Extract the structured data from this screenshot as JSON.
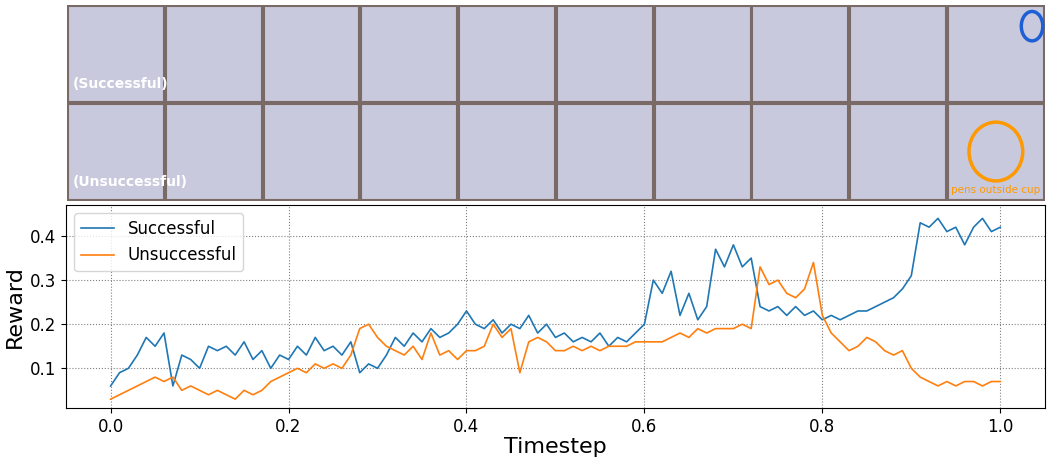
{
  "chart_data": {
    "type": "line",
    "x_label": "Timestep",
    "y_label": "Reward",
    "x": [
      0.0,
      0.01,
      0.02,
      0.03,
      0.04,
      0.05,
      0.06,
      0.07,
      0.08,
      0.09,
      0.1,
      0.11,
      0.12,
      0.13,
      0.14,
      0.15,
      0.16,
      0.17,
      0.18,
      0.19,
      0.2,
      0.21,
      0.22,
      0.23,
      0.24,
      0.25,
      0.26,
      0.27,
      0.28,
      0.29,
      0.3,
      0.31,
      0.32,
      0.33,
      0.34,
      0.35,
      0.36,
      0.37,
      0.38,
      0.39,
      0.4,
      0.41,
      0.42,
      0.43,
      0.44,
      0.45,
      0.46,
      0.47,
      0.48,
      0.49,
      0.5,
      0.51,
      0.52,
      0.53,
      0.54,
      0.55,
      0.56,
      0.57,
      0.58,
      0.59,
      0.6,
      0.61,
      0.62,
      0.63,
      0.64,
      0.65,
      0.66,
      0.67,
      0.68,
      0.69,
      0.7,
      0.71,
      0.72,
      0.73,
      0.74,
      0.75,
      0.76,
      0.77,
      0.78,
      0.79,
      0.8,
      0.81,
      0.82,
      0.83,
      0.84,
      0.85,
      0.86,
      0.87,
      0.88,
      0.89,
      0.9,
      0.91,
      0.92,
      0.93,
      0.94,
      0.95,
      0.96,
      0.97,
      0.98,
      0.99,
      1.0
    ],
    "series": [
      {
        "name": "Successful",
        "color": "#1f77b4",
        "values": [
          0.06,
          0.09,
          0.1,
          0.13,
          0.17,
          0.15,
          0.18,
          0.06,
          0.13,
          0.12,
          0.1,
          0.15,
          0.14,
          0.15,
          0.13,
          0.16,
          0.12,
          0.14,
          0.1,
          0.13,
          0.12,
          0.15,
          0.13,
          0.17,
          0.14,
          0.15,
          0.13,
          0.16,
          0.09,
          0.11,
          0.1,
          0.13,
          0.17,
          0.15,
          0.18,
          0.16,
          0.19,
          0.17,
          0.18,
          0.2,
          0.23,
          0.2,
          0.19,
          0.21,
          0.18,
          0.2,
          0.19,
          0.22,
          0.18,
          0.2,
          0.17,
          0.18,
          0.16,
          0.17,
          0.16,
          0.18,
          0.15,
          0.17,
          0.16,
          0.18,
          0.2,
          0.3,
          0.27,
          0.32,
          0.22,
          0.27,
          0.21,
          0.24,
          0.37,
          0.33,
          0.38,
          0.33,
          0.35,
          0.24,
          0.23,
          0.24,
          0.22,
          0.24,
          0.22,
          0.23,
          0.21,
          0.22,
          0.21,
          0.22,
          0.23,
          0.23,
          0.24,
          0.25,
          0.26,
          0.28,
          0.31,
          0.43,
          0.42,
          0.44,
          0.41,
          0.42,
          0.38,
          0.42,
          0.44,
          0.41,
          0.42
        ]
      },
      {
        "name": "Unsuccessful",
        "color": "#ff7f0e",
        "values": [
          0.03,
          0.04,
          0.05,
          0.06,
          0.07,
          0.08,
          0.07,
          0.08,
          0.05,
          0.06,
          0.05,
          0.04,
          0.05,
          0.04,
          0.03,
          0.05,
          0.04,
          0.05,
          0.07,
          0.08,
          0.09,
          0.1,
          0.09,
          0.11,
          0.1,
          0.11,
          0.1,
          0.13,
          0.19,
          0.2,
          0.17,
          0.15,
          0.14,
          0.13,
          0.15,
          0.12,
          0.18,
          0.13,
          0.14,
          0.12,
          0.14,
          0.14,
          0.15,
          0.2,
          0.17,
          0.19,
          0.09,
          0.16,
          0.17,
          0.16,
          0.14,
          0.14,
          0.15,
          0.14,
          0.15,
          0.14,
          0.15,
          0.15,
          0.15,
          0.16,
          0.16,
          0.16,
          0.16,
          0.17,
          0.18,
          0.17,
          0.19,
          0.18,
          0.19,
          0.19,
          0.19,
          0.2,
          0.19,
          0.33,
          0.29,
          0.3,
          0.27,
          0.26,
          0.28,
          0.34,
          0.22,
          0.18,
          0.16,
          0.14,
          0.15,
          0.17,
          0.16,
          0.14,
          0.13,
          0.14,
          0.1,
          0.08,
          0.07,
          0.06,
          0.07,
          0.06,
          0.07,
          0.07,
          0.06,
          0.07,
          0.07
        ]
      }
    ],
    "xlim": [
      -0.05,
      1.05
    ],
    "ylim": [
      0.01,
      0.47
    ],
    "xticks": [
      0.0,
      0.2,
      0.4,
      0.6,
      0.8,
      1.0
    ],
    "yticks": [
      0.1,
      0.2,
      0.3,
      0.4
    ],
    "grid": true,
    "legend": "upper left"
  },
  "images": {
    "rows": [
      {
        "label": "(Successful)",
        "frames": 10
      },
      {
        "label": "(Unsuccessful)",
        "frames": 10,
        "annotation": "pens outside cup"
      }
    ]
  }
}
